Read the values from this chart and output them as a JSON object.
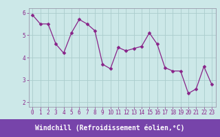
{
  "x": [
    0,
    1,
    2,
    3,
    4,
    5,
    6,
    7,
    8,
    9,
    10,
    11,
    12,
    13,
    14,
    15,
    16,
    17,
    18,
    19,
    20,
    21,
    22,
    23
  ],
  "y": [
    5.9,
    5.5,
    5.5,
    4.6,
    4.2,
    5.1,
    5.7,
    5.5,
    5.2,
    3.7,
    3.5,
    4.45,
    4.3,
    4.4,
    4.5,
    5.1,
    4.6,
    3.55,
    3.4,
    3.4,
    2.4,
    2.6,
    3.6,
    2.8
  ],
  "line_color": "#882288",
  "marker": "D",
  "marker_size": 2.5,
  "bg_color": "#cce8e8",
  "grid_color": "#aacccc",
  "xlabel": "Windchill (Refroidissement éolien,°C)",
  "xlabel_bg": "#7744aa",
  "xlabel_fg": "#ffffff",
  "ylim": [
    1.8,
    6.2
  ],
  "xlim": [
    -0.5,
    23.5
  ],
  "yticks": [
    2,
    3,
    4,
    5,
    6
  ],
  "xticks": [
    0,
    1,
    2,
    3,
    4,
    5,
    6,
    7,
    8,
    9,
    10,
    11,
    12,
    13,
    14,
    15,
    16,
    17,
    18,
    19,
    20,
    21,
    22,
    23
  ],
  "tick_fontsize": 5.5,
  "xlabel_fontsize": 7.0,
  "spine_color": "#9999aa",
  "tick_color": "#882288"
}
